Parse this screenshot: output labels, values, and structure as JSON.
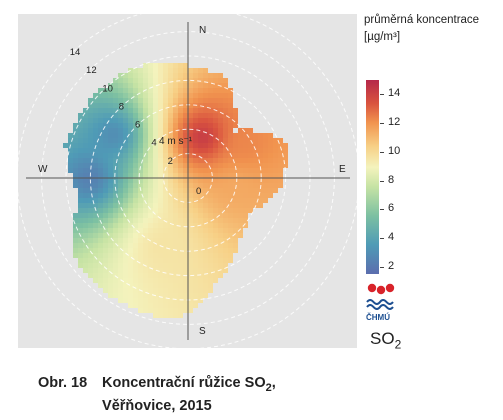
{
  "legend": {
    "title_line1": "průměrná koncentrace",
    "title_line2": "[µg/m³]",
    "ticks": [
      "14",
      "12",
      "10",
      "8",
      "6",
      "4",
      "2"
    ],
    "tick_values": [
      14,
      12,
      10,
      8,
      6,
      4,
      2
    ],
    "range": [
      1.5,
      15
    ],
    "pollutant": "SO2"
  },
  "logo": {
    "text": "ČHMÚ"
  },
  "caption": {
    "label": "Obr. 18",
    "title": "Koncentrační růžice SO2,",
    "location": "Věřňovice, 2015"
  },
  "chart_data": {
    "type": "heatmap",
    "subtype": "polar concentration rose",
    "directions": [
      "N",
      "E",
      "S",
      "W"
    ],
    "speed_unit": "4 m s⁻¹",
    "radial_labels": [
      "0",
      "2",
      "4",
      "6",
      "8",
      "10",
      "12",
      "14"
    ],
    "radial_values": [
      0,
      2,
      4,
      6,
      8,
      10,
      12,
      14
    ],
    "colorscale": [
      "#5b6dae",
      "#4f9bb6",
      "#7cc0a2",
      "#c6e3a4",
      "#f4f3bd",
      "#f7cf85",
      "#f1944f",
      "#d9533f",
      "#b5284a"
    ],
    "hotspots": [
      {
        "dir_deg": 20,
        "speed": 3.5,
        "value": 14.5
      },
      {
        "dir_deg": 60,
        "speed": 5.5,
        "value": 12
      },
      {
        "dir_deg": 100,
        "speed": 4,
        "value": 11
      },
      {
        "dir_deg": 300,
        "speed": 7,
        "value": 2.5
      },
      {
        "dir_deg": 270,
        "speed": 8,
        "value": 2
      },
      {
        "dir_deg": 200,
        "speed": 6,
        "value": 9
      }
    ]
  }
}
